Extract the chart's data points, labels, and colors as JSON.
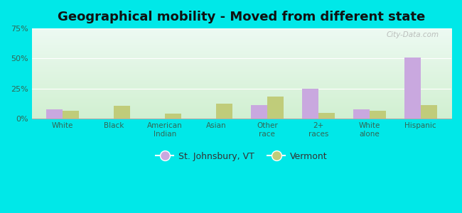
{
  "title": "Geographical mobility - Moved from different state",
  "categories": [
    "White",
    "Black",
    "American\nIndian",
    "Asian",
    "Other\nrace",
    "2+\nraces",
    "White\nalone",
    "Hispanic"
  ],
  "stjohnsbury_values": [
    7.5,
    0.0,
    0.0,
    0.0,
    11.0,
    25.0,
    7.5,
    51.0
  ],
  "vermont_values": [
    6.5,
    10.5,
    4.0,
    12.5,
    18.5,
    5.0,
    6.5,
    11.5
  ],
  "stjohnsbury_color": "#c9a8df",
  "vermont_color": "#c0cc7a",
  "background_outer": "#00e8e8",
  "ylim": [
    0,
    75
  ],
  "yticks": [
    0,
    25,
    50,
    75
  ],
  "ytick_labels": [
    "0%",
    "25%",
    "50%",
    "75%"
  ],
  "legend_stjohnsbury": "St. Johnsbury, VT",
  "legend_vermont": "Vermont",
  "bar_width": 0.32,
  "title_fontsize": 13,
  "watermark": "City-Data.com"
}
